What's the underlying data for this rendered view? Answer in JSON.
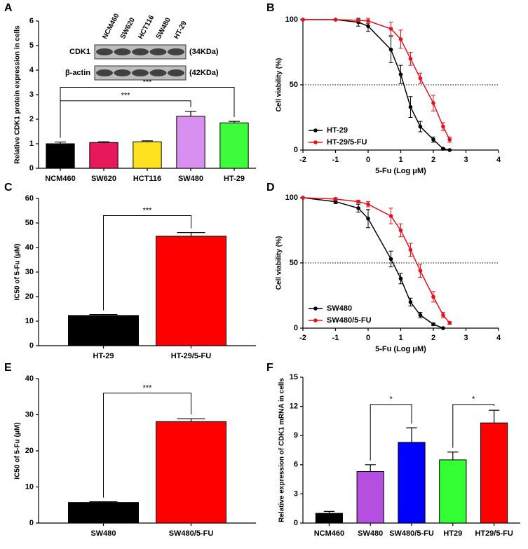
{
  "chart_data": [
    {
      "type": "bar",
      "panel_label": "A",
      "y_label": "Relative CDK1 protein expression  in cells",
      "categories": [
        "NCM460",
        "SW620",
        "HCT116",
        "SW480",
        "HT-29"
      ],
      "values": [
        1.0,
        1.05,
        1.08,
        2.12,
        1.85
      ],
      "errors": [
        0.07,
        0.03,
        0.04,
        0.2,
        0.06
      ],
      "colors": [
        "#000000",
        "#e8195a",
        "#ffe21f",
        "#d98ff0",
        "#3cfc3c"
      ],
      "ylim": [
        0,
        6
      ],
      "yticks": [
        0,
        1,
        2,
        3,
        4,
        5,
        6
      ],
      "annotations": [
        "***",
        "***"
      ],
      "inset": {
        "rows": [
          "CDK1",
          "β-actin"
        ],
        "sizes": [
          "(34KDa)",
          "(42KDa)"
        ]
      }
    },
    {
      "type": "line",
      "panel_label": "B",
      "y_label": "Cell viability (%)",
      "x_label": "5-Fu (Log μM)",
      "x": [
        -2,
        -1,
        -0.3,
        0,
        0.7,
        1,
        1.3,
        1.6,
        2,
        2.3,
        2.5
      ],
      "series": [
        {
          "name": "HT-29",
          "color": "#000000",
          "values": [
            100,
            100,
            98,
            95,
            77,
            58,
            33,
            18,
            8,
            1,
            0
          ],
          "errors": [
            0,
            0,
            3,
            4,
            10,
            7,
            8,
            4,
            2,
            0.5,
            0
          ]
        },
        {
          "name": "HT-29/5-FU",
          "color": "#e8101a",
          "values": [
            100,
            100,
            99.5,
            99,
            93,
            85,
            70,
            55,
            36,
            18,
            8
          ],
          "errors": [
            0,
            0,
            0.5,
            2,
            5,
            7,
            5,
            4,
            6,
            3,
            2
          ]
        }
      ],
      "xlim": [
        -2,
        4
      ],
      "xticks": [
        -2,
        -1,
        0,
        1,
        2,
        3,
        4
      ],
      "ylim": [
        0,
        100
      ],
      "yticks": [
        0,
        50,
        100
      ],
      "reference_line": 50,
      "legend": "lower left"
    },
    {
      "type": "bar",
      "panel_label": "C",
      "y_label": "IC50 of 5-Fu (μM)",
      "categories": [
        "HT-29",
        "HT-29/5-FU"
      ],
      "values": [
        12.3,
        44.6
      ],
      "errors": [
        0.4,
        1.5
      ],
      "colors": [
        "#000000",
        "#ff0000"
      ],
      "ylim": [
        0,
        60
      ],
      "yticks": [
        0,
        10,
        20,
        30,
        40,
        50,
        60
      ],
      "annotations": [
        "***"
      ]
    },
    {
      "type": "line",
      "panel_label": "D",
      "y_label": "Cell viability (%)",
      "x_label": "5-Fu (Log μM)",
      "x": [
        -2,
        -1,
        -0.3,
        0,
        0.7,
        1,
        1.3,
        1.6,
        2,
        2.3,
        2.5
      ],
      "series": [
        {
          "name": "SW480",
          "color": "#000000",
          "values": [
            100,
            97,
            92,
            84,
            53,
            38,
            20,
            10,
            3,
            0,
            null
          ],
          "errors": [
            0,
            1.5,
            3,
            7,
            6,
            4,
            3,
            2,
            1,
            0,
            null
          ]
        },
        {
          "name": "SW480/5-FU",
          "color": "#e8101a",
          "values": [
            100,
            99,
            97,
            95,
            86,
            75,
            60,
            44,
            24,
            10,
            4
          ],
          "errors": [
            0,
            1,
            1,
            2,
            6,
            5,
            5,
            5,
            4,
            2,
            1
          ]
        }
      ],
      "xlim": [
        -2,
        4
      ],
      "xticks": [
        -2,
        -1,
        0,
        1,
        2,
        3,
        4
      ],
      "ylim": [
        0,
        100
      ],
      "yticks": [
        0,
        50,
        100
      ],
      "reference_line": 50,
      "legend": "lower left"
    },
    {
      "type": "bar",
      "panel_label": "E",
      "y_label": "IC50 of 5-Fu (μM)",
      "categories": [
        "SW480",
        "SW480/5-FU"
      ],
      "values": [
        5.7,
        28.1
      ],
      "errors": [
        0.2,
        0.8
      ],
      "colors": [
        "#000000",
        "#ff0000"
      ],
      "ylim": [
        0,
        40
      ],
      "yticks": [
        0,
        10,
        20,
        30,
        40
      ],
      "annotations": [
        "***"
      ]
    },
    {
      "type": "bar",
      "panel_label": "F",
      "y_label": "Relative expression of CDK1 mRNA in cells",
      "categories": [
        "NCM460",
        "SW480",
        "SW480/5-FU",
        "HT29",
        "HT29/5-FU"
      ],
      "values": [
        1.0,
        5.3,
        8.3,
        6.5,
        10.3
      ],
      "errors": [
        0.2,
        0.7,
        1.5,
        0.8,
        1.3
      ],
      "colors": [
        "#000000",
        "#b44fe0",
        "#0000ff",
        "#33ff33",
        "#ff0000"
      ],
      "ylim": [
        0,
        15
      ],
      "yticks": [
        0,
        3,
        6,
        9,
        12,
        15
      ],
      "annotations": [
        "*",
        "*"
      ]
    }
  ]
}
